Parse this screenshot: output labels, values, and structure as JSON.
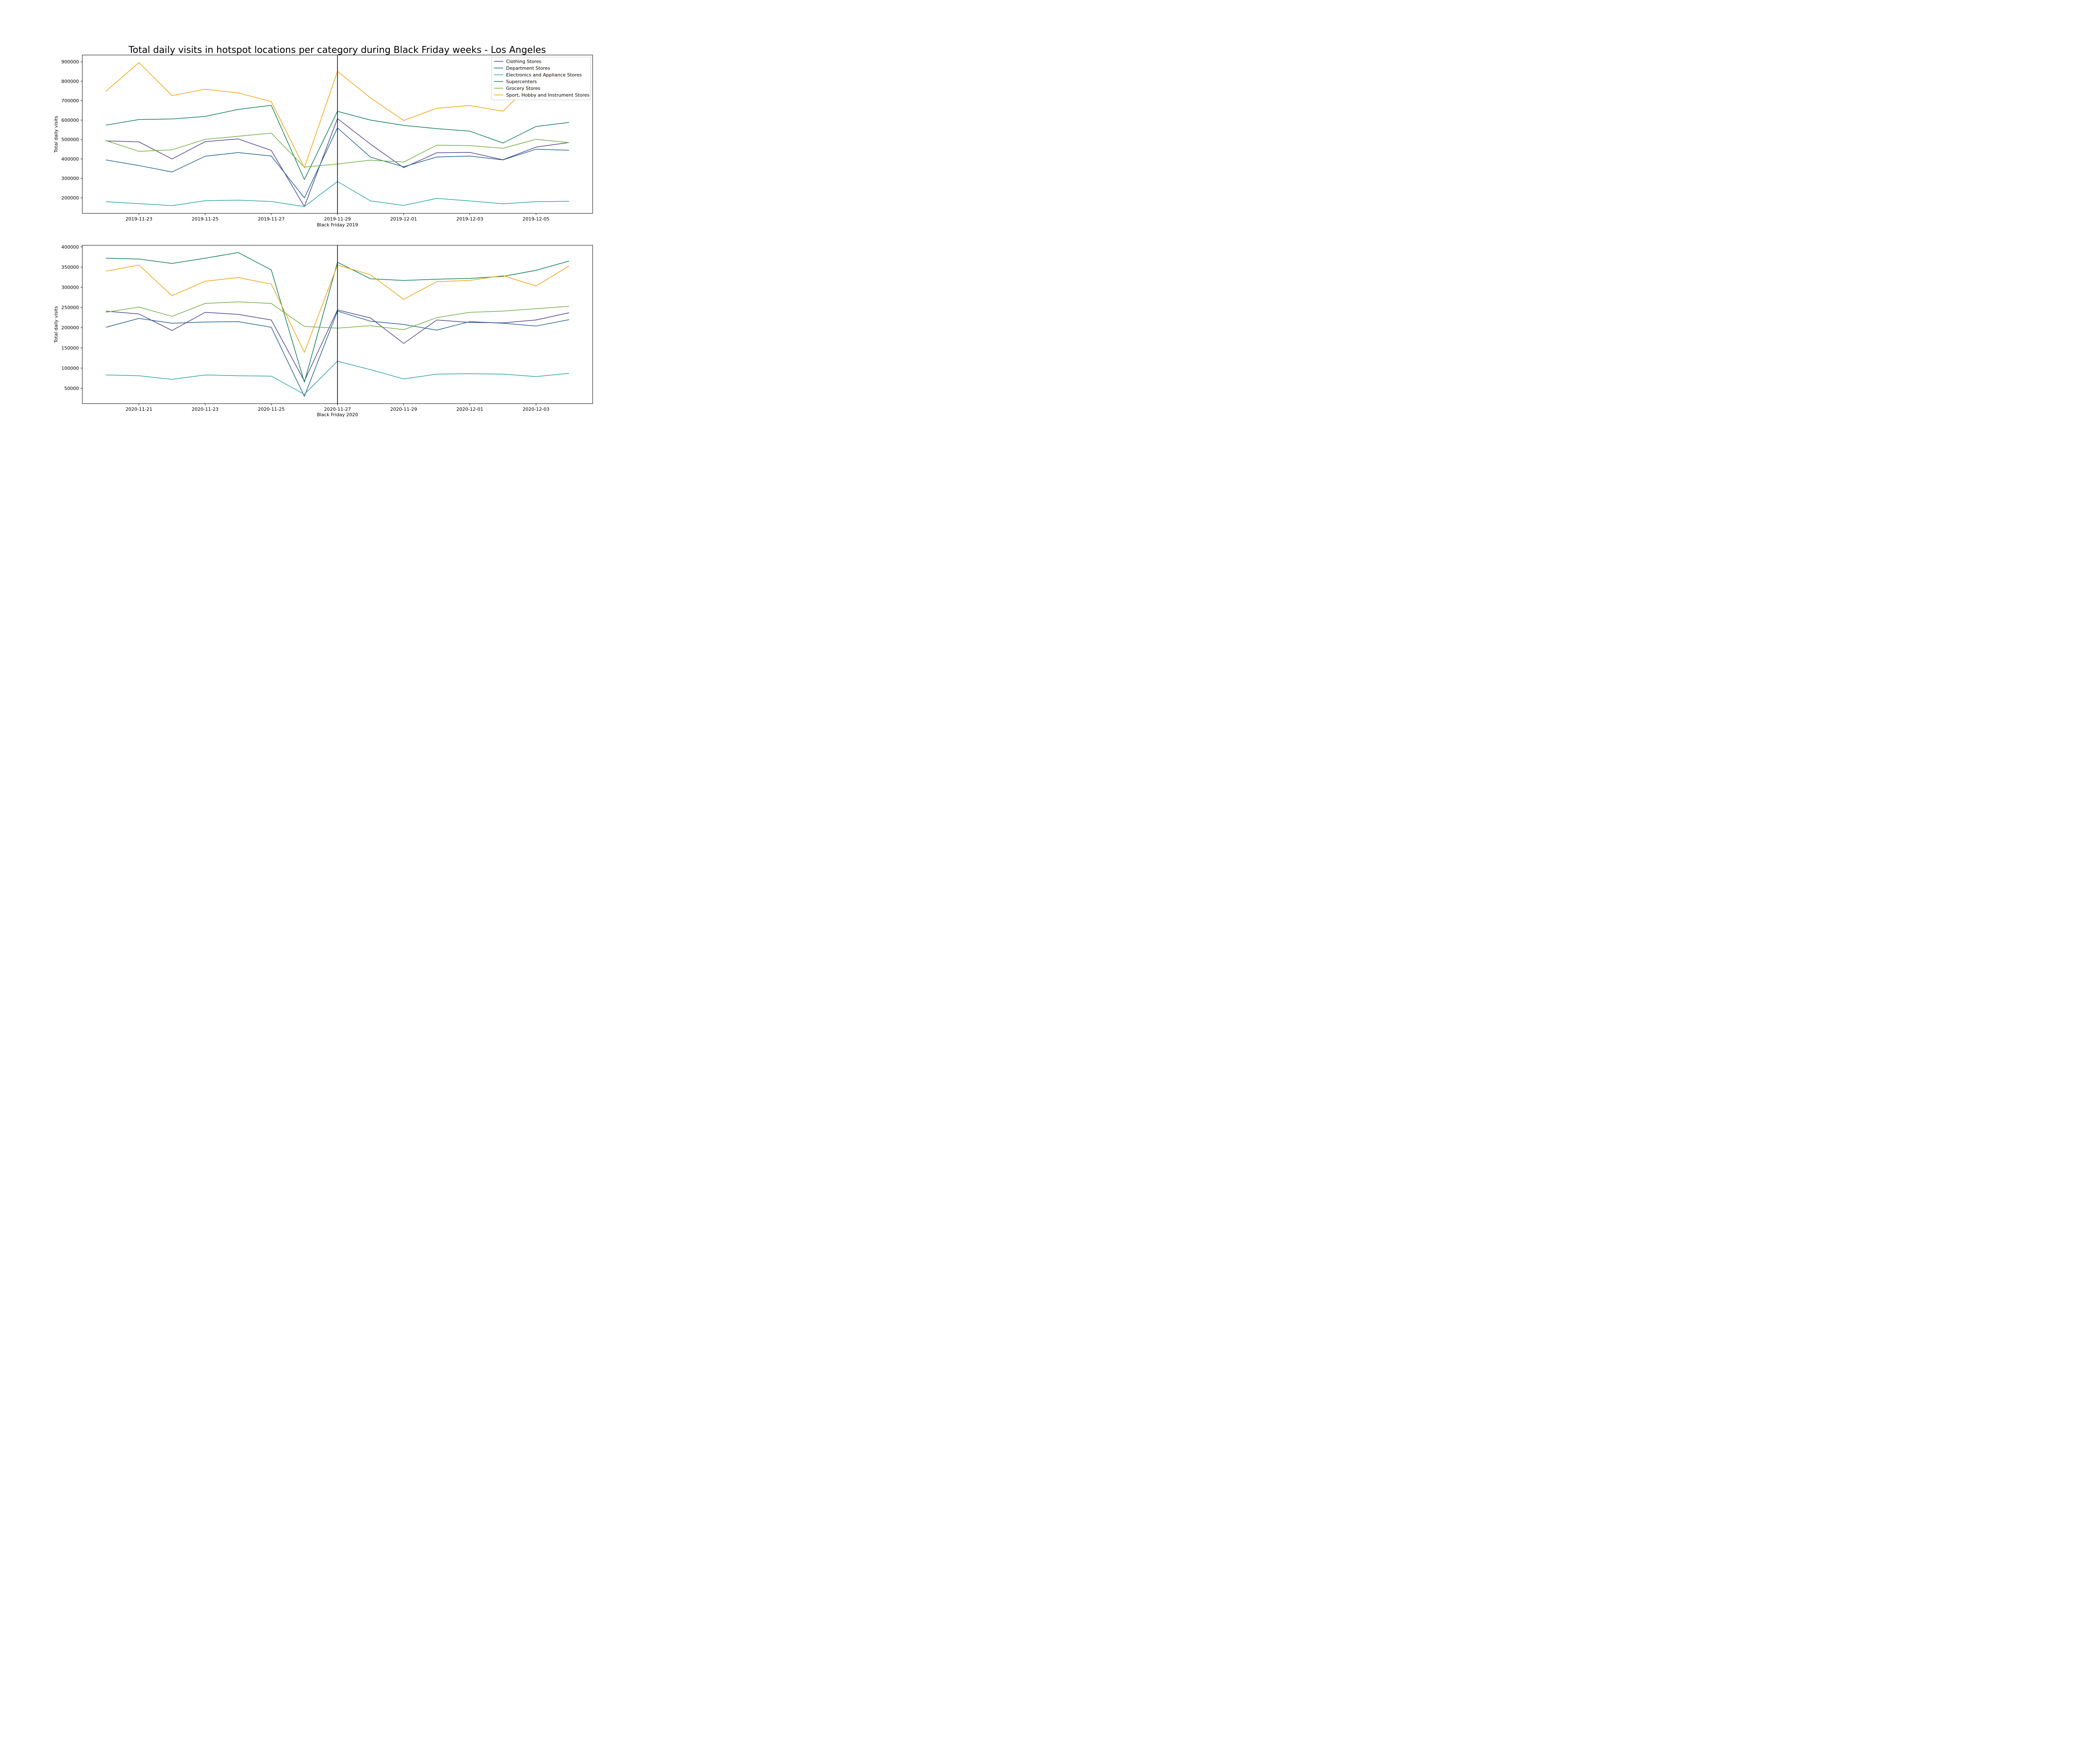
{
  "title": "Total daily visits in hotspot locations per category during Black Friday weeks - Los Angeles",
  "legend": {
    "location": "upper right",
    "entries": [
      {
        "name": "Clothing Stores",
        "color": "#4b3f8f"
      },
      {
        "name": "Department Stores",
        "color": "#1e5f8c"
      },
      {
        "name": "Electronics and Appliance Stores",
        "color": "#2aa0a4"
      },
      {
        "name": "Supercenters",
        "color": "#0b7a55"
      },
      {
        "name": "Grocery Stores",
        "color": "#6aad3c"
      },
      {
        "name": "Sport, Hobby and Instrument Stores",
        "color": "#f0a000"
      }
    ]
  },
  "chart_data": [
    {
      "type": "line",
      "xlabel": "Black Friday 2019",
      "ylabel": "Total daily visits",
      "x": [
        "2019-11-22",
        "2019-11-23",
        "2019-11-24",
        "2019-11-25",
        "2019-11-26",
        "2019-11-27",
        "2019-11-28",
        "2019-11-29",
        "2019-11-30",
        "2019-12-01",
        "2019-12-02",
        "2019-12-03",
        "2019-12-04",
        "2019-12-05",
        "2019-12-06"
      ],
      "xtick_labels": [
        "2019-11-23",
        "2019-11-25",
        "2019-11-27",
        "2019-11-29",
        "2019-12-01",
        "2019-12-03",
        "2019-12-05"
      ],
      "ylim": [
        120000,
        935000
      ],
      "yticks": [
        200000,
        300000,
        400000,
        500000,
        600000,
        700000,
        800000,
        900000
      ],
      "vline": "2019-11-29",
      "grid": false,
      "series": [
        {
          "name": "Clothing Stores",
          "values": [
            493000,
            488000,
            400000,
            489000,
            503000,
            444000,
            155000,
            608000,
            476000,
            355000,
            432000,
            434000,
            396000,
            461000,
            485000
          ]
        },
        {
          "name": "Department Stores",
          "values": [
            395000,
            366000,
            333000,
            414000,
            433000,
            415000,
            200000,
            560000,
            409000,
            360000,
            410000,
            415000,
            395000,
            450000,
            445000
          ]
        },
        {
          "name": "Electronics and Appliance Stores",
          "values": [
            180000,
            170000,
            160000,
            185000,
            188000,
            181000,
            155000,
            284000,
            184000,
            161000,
            197000,
            184000,
            169000,
            180000,
            182000
          ]
        },
        {
          "name": "Supercenters",
          "values": [
            574000,
            603000,
            606000,
            619000,
            655000,
            676000,
            294000,
            645000,
            600000,
            573000,
            556000,
            543000,
            482000,
            567000,
            588000
          ]
        },
        {
          "name": "Grocery Stores",
          "values": [
            495000,
            439000,
            447000,
            501000,
            517000,
            533000,
            358000,
            374000,
            394000,
            384000,
            471000,
            469000,
            455000,
            501000,
            484000
          ]
        },
        {
          "name": "Sport, Hobby and Instrument Stores",
          "values": [
            748000,
            896000,
            726000,
            759000,
            740000,
            695000,
            355000,
            851000,
            714000,
            598000,
            661000,
            675000,
            646000,
            810000,
            818000
          ]
        }
      ]
    },
    {
      "type": "line",
      "xlabel": "Black Friday 2020",
      "ylabel": "Total daily visits",
      "x": [
        "2020-11-20",
        "2020-11-21",
        "2020-11-22",
        "2020-11-23",
        "2020-11-24",
        "2020-11-25",
        "2020-11-26",
        "2020-11-27",
        "2020-11-28",
        "2020-11-29",
        "2020-11-30",
        "2020-12-01",
        "2020-12-02",
        "2020-12-03",
        "2020-12-04"
      ],
      "xtick_labels": [
        "2020-11-21",
        "2020-11-23",
        "2020-11-25",
        "2020-11-27",
        "2020-11-29",
        "2020-12-01",
        "2020-12-03"
      ],
      "ylim": [
        12000,
        404000
      ],
      "yticks": [
        50000,
        100000,
        150000,
        200000,
        250000,
        300000,
        350000,
        400000
      ],
      "vline": "2020-11-27",
      "grid": false,
      "series": [
        {
          "name": "Clothing Stores",
          "values": [
            241000,
            234000,
            193000,
            238000,
            233000,
            219000,
            68000,
            244000,
            224000,
            161000,
            219000,
            213000,
            212000,
            219000,
            237000
          ]
        },
        {
          "name": "Department Stores",
          "values": [
            201000,
            223000,
            211000,
            214000,
            215000,
            201000,
            30000,
            241000,
            216000,
            208000,
            194000,
            215000,
            211000,
            204000,
            220000
          ]
        },
        {
          "name": "Electronics and Appliance Stores",
          "values": [
            83000,
            81000,
            72000,
            83000,
            81000,
            80000,
            35000,
            117000,
            96000,
            73000,
            85000,
            86000,
            85000,
            79000,
            87000
          ]
        },
        {
          "name": "Supercenters",
          "values": [
            372000,
            370000,
            359000,
            372000,
            386000,
            343000,
            65000,
            362000,
            321000,
            317000,
            320000,
            322000,
            327000,
            342000,
            365000
          ]
        },
        {
          "name": "Grocery Stores",
          "values": [
            238000,
            251000,
            228000,
            260000,
            264000,
            260000,
            203000,
            199000,
            205000,
            195000,
            225000,
            238000,
            241000,
            247000,
            253000
          ]
        },
        {
          "name": "Sport, Hobby and Instrument Stores",
          "values": [
            340000,
            355000,
            279000,
            315000,
            324000,
            308000,
            139000,
            355000,
            331000,
            270000,
            314000,
            317000,
            329000,
            303000,
            353000
          ]
        }
      ]
    }
  ]
}
